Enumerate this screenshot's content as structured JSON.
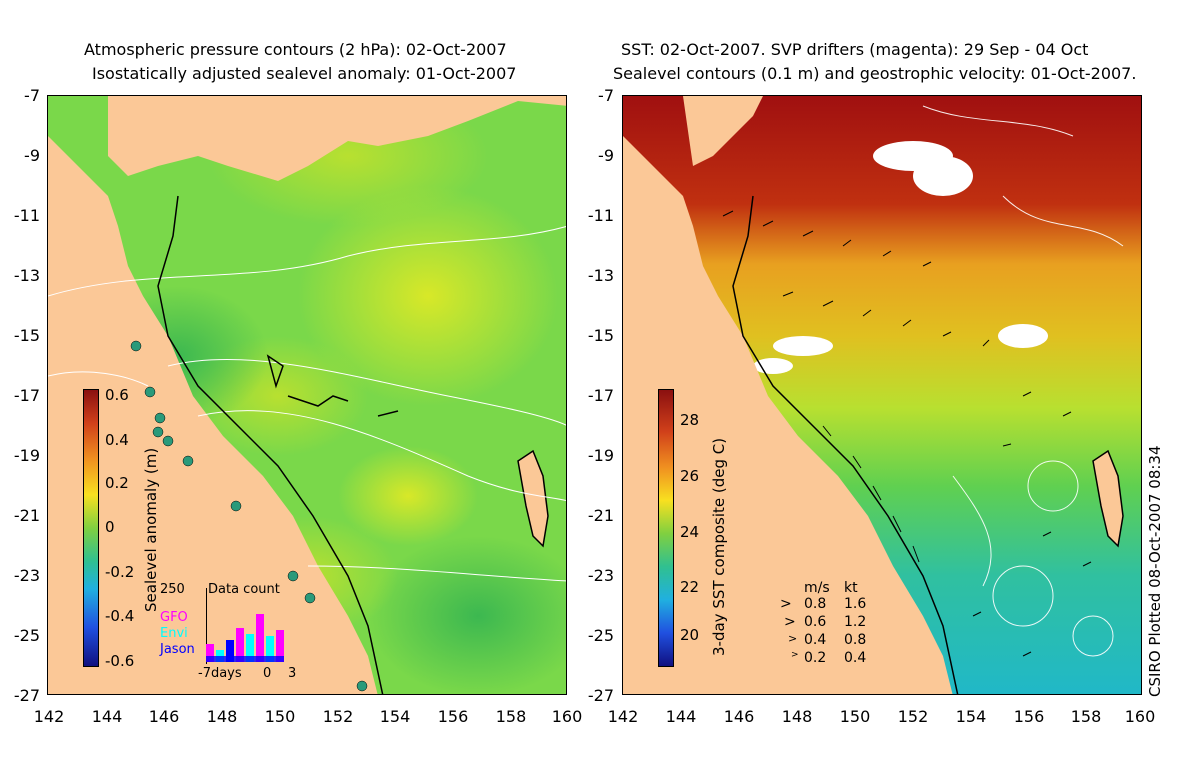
{
  "left_panel": {
    "title_line1": "Atmospheric pressure contours (2 hPa): 02-Oct-2007",
    "title_line2": "Isostatically adjusted sealevel anomaly: 01-Oct-2007",
    "colorbar": {
      "label": "Sealevel anomaly (m)",
      "ticks": [
        "0.6",
        "0.4",
        "0.2",
        "0",
        "-0.2",
        "-0.4",
        "-0.6"
      ]
    },
    "inset": {
      "title": "Data count",
      "ymax": "250",
      "series_labels": [
        "GFO",
        "Envi",
        "Jason"
      ],
      "series_colors": [
        "#ff00ff",
        "#00ffff",
        "#0000ff"
      ],
      "x_labels": [
        "-7days",
        "0",
        "3"
      ]
    }
  },
  "right_panel": {
    "title_line1": "SST: 02-Oct-2007. SVP drifters (magenta): 29 Sep - 04 Oct",
    "title_line2": "Sealevel contours (0.1 m) and geostrophic velocity: 01-Oct-2007.",
    "colorbar": {
      "label": "3-day SST composite (deg C)",
      "ticks": [
        "28",
        "26",
        "24",
        "22",
        "20"
      ]
    },
    "velocity_legend": {
      "header_ms": "m/s",
      "header_kt": "kt",
      "rows": [
        {
          "ms": "0.8",
          "kt": "1.6"
        },
        {
          "ms": "0.6",
          "kt": "1.2"
        },
        {
          "ms": "0.4",
          "kt": "0.8"
        },
        {
          "ms": "0.2",
          "kt": "0.4"
        }
      ]
    },
    "plotted_label": "CSIRO Plotted 08-Oct-2007 08:34"
  },
  "axes": {
    "y_ticks": [
      "-7",
      "-9",
      "-11",
      "-13",
      "-15",
      "-17",
      "-19",
      "-21",
      "-23",
      "-25",
      "-27"
    ],
    "x_ticks": [
      "142",
      "144",
      "146",
      "148",
      "150",
      "152",
      "154",
      "156",
      "158",
      "160"
    ]
  },
  "colors": {
    "land": "#fbc897",
    "sla_base": "#6fd24a",
    "sst_warm": "#a01010",
    "sst_mid": "#e8a020"
  }
}
